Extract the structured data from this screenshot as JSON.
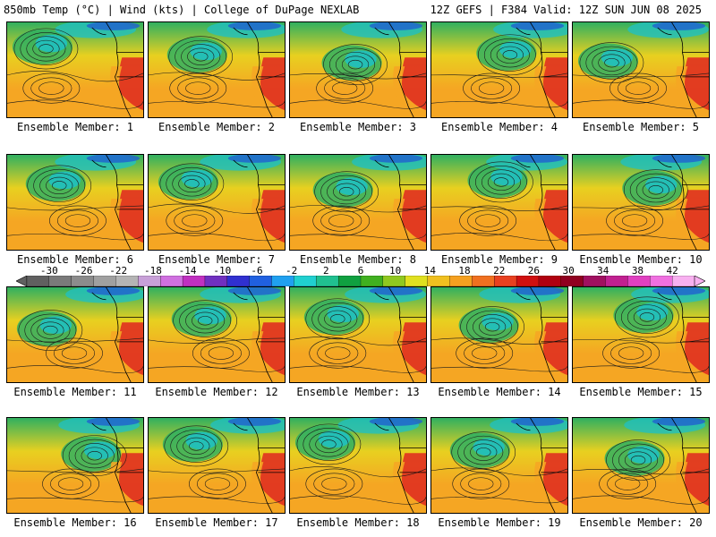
{
  "header": {
    "left": "850mb Temp (°C) | Wind (kts) | College of DuPage NEXLAB",
    "right": "12Z GEFS | F384 Valid: 12Z SUN JUN 08 2025"
  },
  "members": [
    "Ensemble Member: 1",
    "Ensemble Member: 2",
    "Ensemble Member: 3",
    "Ensemble Member: 4",
    "Ensemble Member: 5",
    "Ensemble Member: 6",
    "Ensemble Member: 7",
    "Ensemble Member: 8",
    "Ensemble Member: 9",
    "Ensemble Member: 10",
    "Ensemble Member: 11",
    "Ensemble Member: 12",
    "Ensemble Member: 13",
    "Ensemble Member: 14",
    "Ensemble Member: 15",
    "Ensemble Member: 16",
    "Ensemble Member: 17",
    "Ensemble Member: 18",
    "Ensemble Member: 19",
    "Ensemble Member: 20"
  ],
  "colorbar": {
    "labels": [
      "-30",
      "-26",
      "-22",
      "-18",
      "-14",
      "-10",
      "-6",
      "-2",
      "2",
      "6",
      "10",
      "14",
      "18",
      "22",
      "26",
      "30",
      "34",
      "38",
      "42"
    ],
    "colors": [
      "#606060",
      "#7a7a7a",
      "#8c8c8c",
      "#a0a0a0",
      "#b4b4b4",
      "#c8a0d8",
      "#d070e0",
      "#c030c0",
      "#7030c0",
      "#3030d0",
      "#2060e0",
      "#20a0f0",
      "#20d0d0",
      "#20c090",
      "#10a040",
      "#40b020",
      "#90c820",
      "#e0e020",
      "#f0c020",
      "#f5a020",
      "#f07020",
      "#e84020",
      "#d01010",
      "#b00010",
      "#900020",
      "#a01060",
      "#c02090",
      "#e040c0",
      "#f070e0",
      "#f8b0f0"
    ]
  },
  "map_colors": {
    "ocean_warm": "#f5a623",
    "ocean_mid": "#e8d020",
    "cool": "#30b060",
    "cold": "#20c0c0",
    "coldest": "#2060d0",
    "hot": "#e03020"
  }
}
